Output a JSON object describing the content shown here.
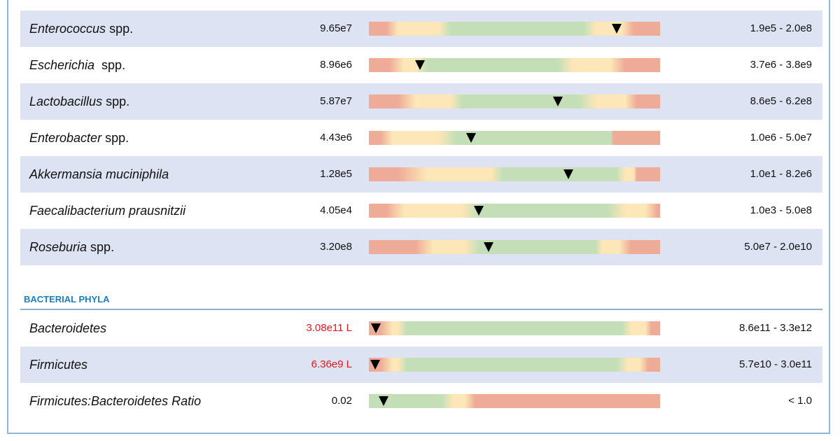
{
  "genera": {
    "rows": [
      {
        "italic": "Enterococcus",
        "suffix": " spp.",
        "value": "9.65e7",
        "range": "1.9e5 - 2.0e8"
      },
      {
        "italic": "Escherichia",
        "suffix": "  spp.",
        "value": "8.96e6",
        "range": "3.7e6 - 3.8e9"
      },
      {
        "italic": "Lactobacillus",
        "suffix": " spp.",
        "value": "5.87e7",
        "range": "8.6e5 - 6.2e8"
      },
      {
        "italic": "Enterobacter",
        "suffix": " spp.",
        "value": "4.43e6",
        "range": "1.0e6 - 5.0e7"
      },
      {
        "italic": "Akkermansia muciniphila",
        "value": "1.28e5",
        "range": "1.0e1 - 8.2e6"
      },
      {
        "italic": "Faecalibacterium prausnitzii",
        "value": "4.05e4",
        "range": "1.0e3 - 5.0e8"
      },
      {
        "italic": "Roseburia",
        "suffix": " spp.",
        "value": "3.20e8",
        "range": "5.0e7 - 2.0e10"
      }
    ]
  },
  "phyla": {
    "title": "BACTERIAL PHYLA",
    "rows": [
      {
        "italic": "Bacteroidetes",
        "value": "3.08e11 L",
        "low": true,
        "range": "8.6e11 - 3.3e12"
      },
      {
        "italic": "Firmicutes",
        "value": "6.36e9 L",
        "low": true,
        "range": "5.7e10 - 3.0e11"
      },
      {
        "italic": "Firmicutes:Bacteroidetes Ratio",
        "value": "0.02",
        "range": "< 1.0"
      }
    ]
  }
}
